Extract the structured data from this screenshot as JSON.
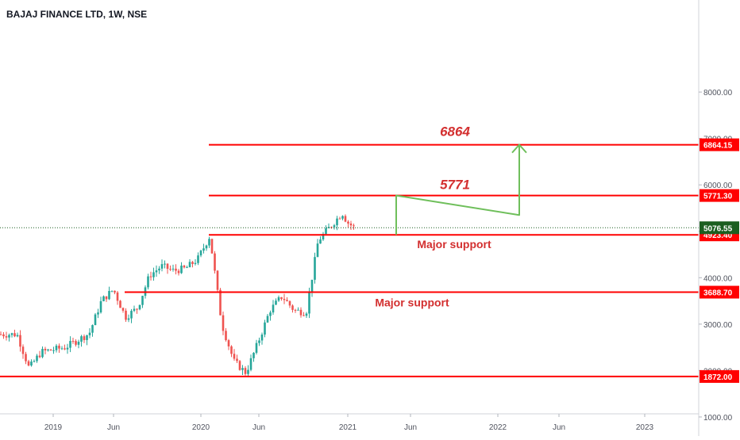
{
  "chart_data": {
    "type": "candlestick",
    "title": "BAJAJ FINANCE LTD, 1W, NSE",
    "yaxis": {
      "ticks": [
        1000,
        2000,
        3000,
        4000,
        5000,
        6000,
        7000,
        8000
      ],
      "tick_labels": [
        "1000.00",
        "2000.00",
        "3000.00",
        "4000.00",
        "5000.00",
        "6000.00",
        "7000.00",
        "8000.00"
      ]
    },
    "xaxis": {
      "ticks": [
        "2019",
        "Jun",
        "2020",
        "Jun",
        "2021",
        "Jun",
        "2022",
        "Jun",
        "2023"
      ]
    },
    "grid": false,
    "colors": {
      "up": "#26a69a",
      "down": "#ef5350",
      "levels": "#ff0000",
      "arrow": "#6fbf5b",
      "label_text": "#d32f2f",
      "current_price_badge": "#1b5e20"
    },
    "last_price": {
      "value": 5076.55,
      "label": "5076.55"
    },
    "levels": [
      {
        "value": 6864.15,
        "label": "6864.15",
        "annotation": "6864"
      },
      {
        "value": 5771.3,
        "label": "5771.30",
        "annotation": "5771"
      },
      {
        "value": 4923.4,
        "label": "4923.40",
        "annotation": "Major support"
      },
      {
        "value": 3688.7,
        "label": "3688.70",
        "annotation": "Major support"
      },
      {
        "value": 1872.0,
        "label": "1872.00",
        "annotation": ""
      }
    ],
    "projection_arrow": {
      "points": [
        {
          "date": "2021-05",
          "value": 4923
        },
        {
          "date": "2021-05",
          "value": 5771
        },
        {
          "date": "2022-03",
          "value": 5350
        },
        {
          "date": "2022-03",
          "value": 6864
        }
      ]
    },
    "price_path": [
      {
        "date": "2018-10",
        "value": 2780
      },
      {
        "date": "2018-11",
        "value": 2050
      },
      {
        "date": "2018-12",
        "value": 2400
      },
      {
        "date": "2019-02",
        "value": 2500
      },
      {
        "date": "2019-04",
        "value": 2800
      },
      {
        "date": "2019-05",
        "value": 3500
      },
      {
        "date": "2019-06",
        "value": 3750
      },
      {
        "date": "2019-07",
        "value": 3150
      },
      {
        "date": "2019-08",
        "value": 3350
      },
      {
        "date": "2019-09",
        "value": 4050
      },
      {
        "date": "2019-10",
        "value": 4250
      },
      {
        "date": "2019-11",
        "value": 4150
      },
      {
        "date": "2019-12",
        "value": 4200
      },
      {
        "date": "2020-01",
        "value": 4400
      },
      {
        "date": "2020-02",
        "value": 4900
      },
      {
        "date": "2020-03",
        "value": 3000
      },
      {
        "date": "2020-04",
        "value": 2200
      },
      {
        "date": "2020-05",
        "value": 1950
      },
      {
        "date": "2020-06",
        "value": 2600
      },
      {
        "date": "2020-07",
        "value": 3300
      },
      {
        "date": "2020-08",
        "value": 3600
      },
      {
        "date": "2020-09",
        "value": 3300
      },
      {
        "date": "2020-10",
        "value": 3250
      },
      {
        "date": "2020-11",
        "value": 4800
      },
      {
        "date": "2020-12",
        "value": 5100
      },
      {
        "date": "2021-01",
        "value": 5400
      },
      {
        "date": "2021-01",
        "value": 5200
      },
      {
        "date": "2021-02",
        "value": 5076.55
      }
    ]
  }
}
